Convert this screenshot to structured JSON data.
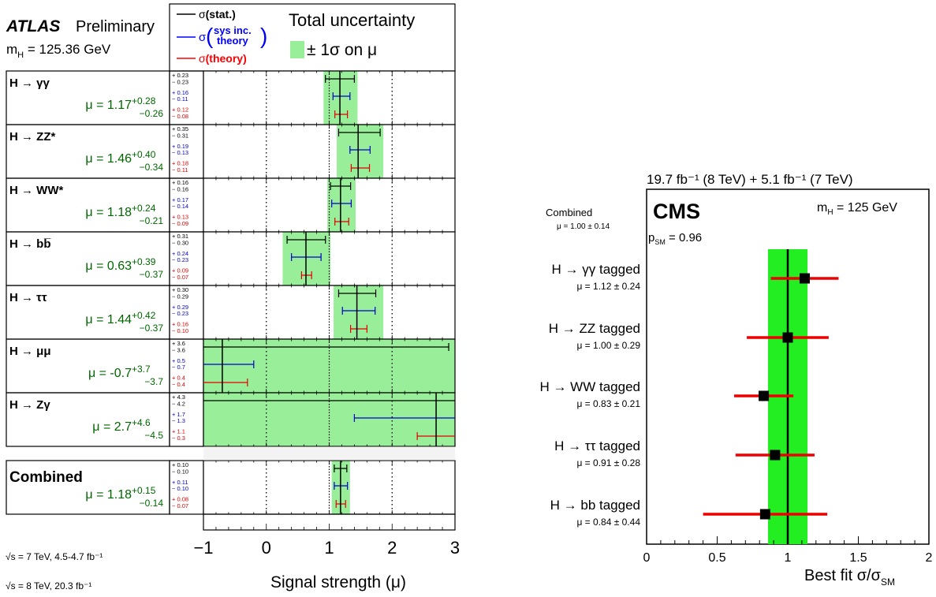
{
  "chart_data": [
    {
      "type": "scatter",
      "atlas_label": "ATLAS",
      "prelim_label": "Preliminary",
      "mass_label": "m",
      "mass_sub": "H",
      "mass_value": " = 125.36 GeV",
      "legend": {
        "stat_sigma": "σ",
        "stat_label": "(stat.)",
        "sys_sigma": "σ",
        "sys_line1": "sys inc.",
        "sys_line2": "theory",
        "theory_sigma": "σ",
        "theory_label": "(theory)",
        "total_title": "Total uncertainty",
        "band_label": "± 1σ on μ"
      },
      "xlabel": "Signal strength (μ)",
      "xlim": [
        -1,
        3
      ],
      "x_ticks": [
        "−1",
        "0",
        "1",
        "2",
        "3"
      ],
      "energy_notes": [
        "√s = 7 TeV, 4.5-4.7 fb⁻¹",
        "√s = 8 TeV, 20.3 fb⁻¹"
      ],
      "channels": [
        {
          "name": "H → γγ",
          "mu_text": "μ = 1.17",
          "mu": 1.17,
          "tot_up": 0.28,
          "tot_dn": 0.26,
          "tot_up_t": "+0.28",
          "tot_dn_t": "−0.26",
          "stat_up": 0.23,
          "stat_dn": 0.23,
          "sys_up": 0.16,
          "sys_dn": 0.11,
          "th_up": 0.12,
          "th_dn": 0.08,
          "lbl": [
            "+ 0.23",
            "− 0.23",
            "+ 0.16",
            "− 0.11",
            "+ 0.12",
            "− 0.08"
          ]
        },
        {
          "name": "H → ZZ*",
          "mu_text": "μ = 1.46",
          "mu": 1.46,
          "tot_up": 0.4,
          "tot_dn": 0.34,
          "tot_up_t": "+0.40",
          "tot_dn_t": "−0.34",
          "stat_up": 0.35,
          "stat_dn": 0.31,
          "sys_up": 0.19,
          "sys_dn": 0.13,
          "th_up": 0.18,
          "th_dn": 0.11,
          "lbl": [
            "+ 0.35",
            "− 0.31",
            "+ 0.19",
            "− 0.13",
            "+ 0.18",
            "− 0.11"
          ]
        },
        {
          "name": "H → WW*",
          "mu_text": "μ = 1.18",
          "mu": 1.18,
          "tot_up": 0.24,
          "tot_dn": 0.21,
          "tot_up_t": "+0.24",
          "tot_dn_t": "−0.21",
          "stat_up": 0.16,
          "stat_dn": 0.16,
          "sys_up": 0.17,
          "sys_dn": 0.14,
          "th_up": 0.13,
          "th_dn": 0.09,
          "lbl": [
            "+ 0.16",
            "− 0.16",
            "+ 0.17",
            "− 0.14",
            "+ 0.13",
            "− 0.09"
          ]
        },
        {
          "name": "H → bb̅",
          "mu_text": "μ = 0.63",
          "mu": 0.63,
          "tot_up": 0.39,
          "tot_dn": 0.37,
          "tot_up_t": "+0.39",
          "tot_dn_t": "−0.37",
          "stat_up": 0.31,
          "stat_dn": 0.3,
          "sys_up": 0.24,
          "sys_dn": 0.23,
          "th_up": 0.09,
          "th_dn": 0.07,
          "lbl": [
            "+ 0.31",
            "− 0.30",
            "+ 0.24",
            "− 0.23",
            "+ 0.09",
            "− 0.07"
          ]
        },
        {
          "name": "H → ττ",
          "mu_text": "μ = 1.44",
          "mu": 1.44,
          "tot_up": 0.42,
          "tot_dn": 0.37,
          "tot_up_t": "+0.42",
          "tot_dn_t": "−0.37",
          "stat_up": 0.3,
          "stat_dn": 0.29,
          "sys_up": 0.29,
          "sys_dn": 0.23,
          "th_up": 0.16,
          "th_dn": 0.1,
          "lbl": [
            "+ 0.30",
            "− 0.29",
            "+ 0.29",
            "− 0.23",
            "+ 0.16",
            "− 0.10"
          ]
        },
        {
          "name": "H → μμ",
          "mu_text": "μ = -0.7",
          "mu": -0.7,
          "tot_up": 3.7,
          "tot_dn": 3.7,
          "tot_up_t": "+3.7",
          "tot_dn_t": "−3.7",
          "stat_up": 3.6,
          "stat_dn": 3.6,
          "sys_up": 0.5,
          "sys_dn": 0.7,
          "th_up": 0.4,
          "th_dn": 0.4,
          "lbl": [
            "+ 3.6",
            "− 3.6",
            "+ 0.5",
            "− 0.7",
            "+ 0.4",
            "− 0.4"
          ]
        },
        {
          "name": "H → Zγ",
          "mu_text": "μ = 2.7",
          "mu": 2.7,
          "tot_up": 4.6,
          "tot_dn": 4.5,
          "tot_up_t": "+4.6",
          "tot_dn_t": "−4.5",
          "stat_up": 4.3,
          "stat_dn": 4.2,
          "sys_up": 1.7,
          "sys_dn": 1.3,
          "th_up": 1.1,
          "th_dn": 0.3,
          "lbl": [
            "+ 4.3",
            "− 4.2",
            "+ 1.7",
            "− 1.3",
            "+ 1.1",
            "− 0.3"
          ]
        }
      ],
      "combined": {
        "name": "Combined",
        "mu_text": "μ = 1.18",
        "mu": 1.18,
        "tot_up": 0.15,
        "tot_dn": 0.14,
        "tot_up_t": "+0.15",
        "tot_dn_t": "−0.14",
        "stat_up": 0.1,
        "stat_dn": 0.1,
        "sys_up": 0.11,
        "sys_dn": 0.1,
        "th_up": 0.08,
        "th_dn": 0.07,
        "lbl": [
          "+ 0.10",
          "− 0.10",
          "+ 0.11",
          "− 0.10",
          "+ 0.08",
          "− 0.07"
        ]
      },
      "colors": {
        "stat": "#000000",
        "sys": "#0000cc",
        "theory": "#e00000",
        "band": "#99ee99",
        "mu_text": "#006600",
        "legend_sys": "#0000ff",
        "legend_theory": "#ff0000"
      }
    },
    {
      "type": "scatter",
      "lumi_title": "19.7 fb⁻¹ (8 TeV) +  5.1 fb⁻¹ (7 TeV)",
      "experiment": "CMS",
      "mass_label": "m",
      "mass_sub": "H",
      "mass_value": " = 125 GeV",
      "psm_label": "p",
      "psm_sub": "SM",
      "psm_value": " = 0.96",
      "combined_label": "Combined",
      "combined_mu_text": "μ = 1.00 ± 0.14",
      "combined_mu": 1.0,
      "combined_err": 0.14,
      "xlabel": "Best fit σ/σ",
      "xlabel_sub": "SM",
      "xlim": [
        0,
        2
      ],
      "x_ticks": [
        "0",
        "0.5",
        "1",
        "1.5",
        "2"
      ],
      "points": [
        {
          "label": "H → γγ tagged",
          "mu_text": "μ = 1.12 ± 0.24",
          "x": 1.12,
          "err": 0.24
        },
        {
          "label": "H → ZZ tagged",
          "mu_text": "μ = 1.00 ± 0.29",
          "x": 1.0,
          "err": 0.29
        },
        {
          "label": "H → WW tagged",
          "mu_text": "μ = 0.83 ± 0.21",
          "x": 0.83,
          "err": 0.21
        },
        {
          "label": "H → ττ tagged",
          "mu_text": "μ = 0.91 ± 0.28",
          "x": 0.91,
          "err": 0.28
        },
        {
          "label": "H → bb tagged",
          "mu_text": "μ = 0.84 ± 0.44",
          "x": 0.84,
          "err": 0.44
        }
      ],
      "colors": {
        "band": "#22ee22",
        "errbar": "#ee0000",
        "marker": "#000000",
        "line": "#000000"
      }
    }
  ]
}
